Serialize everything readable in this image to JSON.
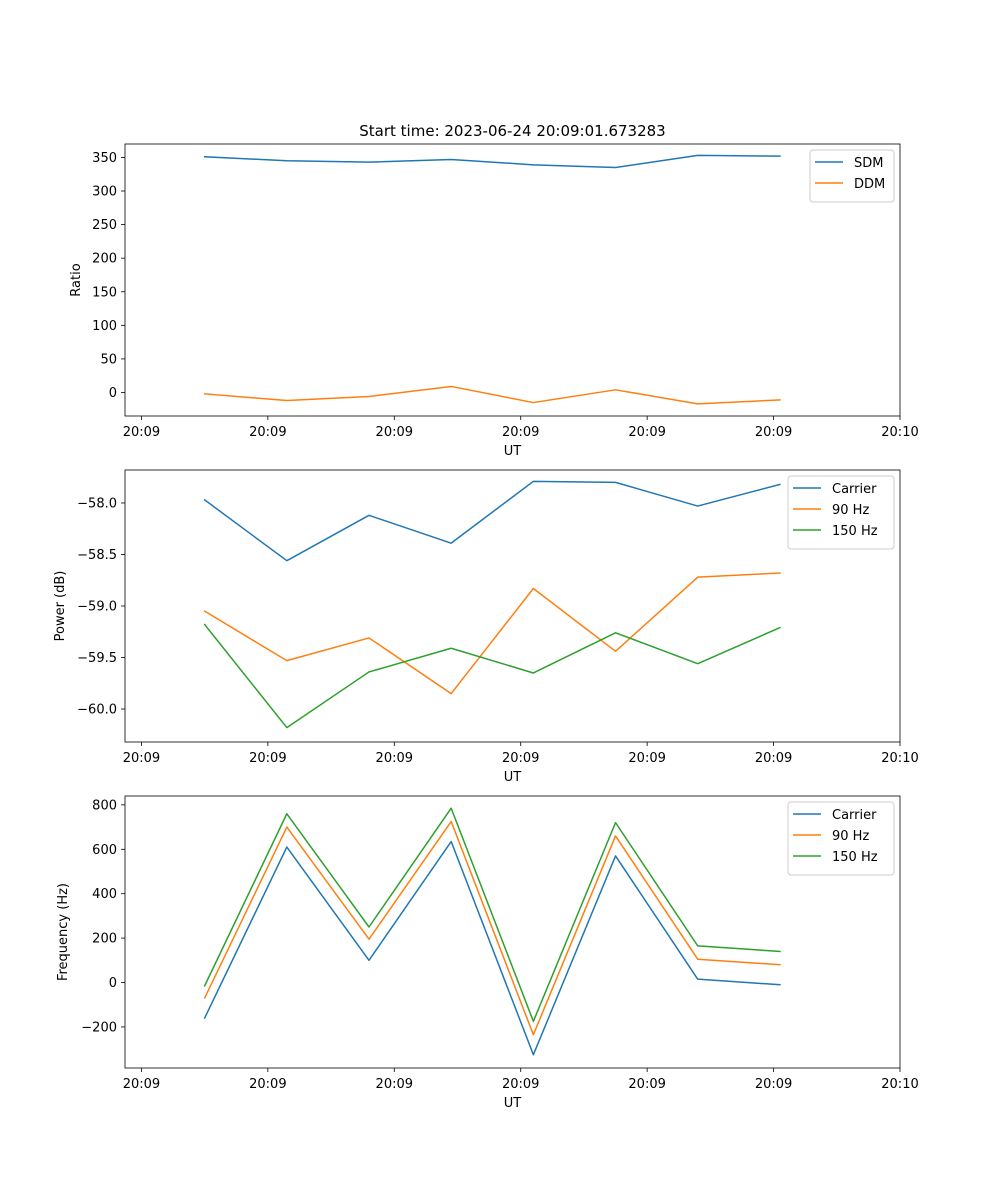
{
  "figure": {
    "title": "Start time: 2023-06-24 20:09:01.673283"
  },
  "chart_data": [
    {
      "type": "line",
      "title": "Start time: 2023-06-24 20:09:01.673283",
      "xlabel": "UT",
      "ylabel": "Ratio",
      "x_ticks": [
        "20:09",
        "20:09",
        "20:09",
        "20:09",
        "20:09",
        "20:09",
        "20:10"
      ],
      "x": [
        0.5,
        1.15,
        1.8,
        2.45,
        3.1,
        3.75,
        4.4,
        5.05
      ],
      "xlim": [
        -0.13,
        6.0
      ],
      "ylim": [
        -35,
        370
      ],
      "y_ticks": [
        0,
        50,
        100,
        150,
        200,
        250,
        300,
        350
      ],
      "legend": "top-right",
      "grid": false,
      "series": [
        {
          "name": "SDM",
          "color": "#1f77b4",
          "values": [
            351,
            345,
            343,
            347,
            339,
            335,
            353,
            352
          ]
        },
        {
          "name": "DDM",
          "color": "#ff7f0e",
          "values": [
            -2,
            -12,
            -6,
            9,
            -15,
            4,
            -17,
            -11
          ]
        }
      ]
    },
    {
      "type": "line",
      "xlabel": "UT",
      "ylabel": "Power (dB)",
      "x_ticks": [
        "20:09",
        "20:09",
        "20:09",
        "20:09",
        "20:09",
        "20:09",
        "20:10"
      ],
      "x": [
        0.5,
        1.15,
        1.8,
        2.45,
        3.1,
        3.75,
        4.4,
        5.05
      ],
      "xlim": [
        -0.13,
        6.0
      ],
      "ylim": [
        -60.32,
        -57.68
      ],
      "y_ticks": [
        -58.0,
        -58.5,
        -59.0,
        -59.5,
        -60.0
      ],
      "y_tick_labels": [
        "−58.0",
        "−58.5",
        "−59.0",
        "−59.5",
        "−60.0"
      ],
      "legend": "top-right",
      "grid": false,
      "series": [
        {
          "name": "Carrier",
          "color": "#1f77b4",
          "values": [
            -57.97,
            -58.56,
            -58.12,
            -58.39,
            -57.79,
            -57.8,
            -58.03,
            -57.82
          ]
        },
        {
          "name": "90 Hz",
          "color": "#ff7f0e",
          "values": [
            -59.05,
            -59.53,
            -59.31,
            -59.85,
            -58.83,
            -59.44,
            -58.72,
            -58.68
          ]
        },
        {
          "name": "150 Hz",
          "color": "#2ca02c",
          "values": [
            -59.18,
            -60.18,
            -59.64,
            -59.41,
            -59.65,
            -59.26,
            -59.56,
            -59.21
          ]
        }
      ]
    },
    {
      "type": "line",
      "xlabel": "UT",
      "ylabel": "Frequency (Hz)",
      "x_ticks": [
        "20:09",
        "20:09",
        "20:09",
        "20:09",
        "20:09",
        "20:09",
        "20:10"
      ],
      "x": [
        0.5,
        1.15,
        1.8,
        2.45,
        3.1,
        3.75,
        4.4,
        5.05
      ],
      "xlim": [
        -0.13,
        6.0
      ],
      "ylim": [
        -385,
        840
      ],
      "y_ticks": [
        -200,
        0,
        200,
        400,
        600,
        800
      ],
      "y_tick_labels": [
        "−200",
        "0",
        "200",
        "400",
        "600",
        "800"
      ],
      "legend": "top-right",
      "grid": false,
      "series": [
        {
          "name": "Carrier",
          "color": "#1f77b4",
          "values": [
            -160,
            610,
            100,
            635,
            -325,
            570,
            15,
            -10
          ]
        },
        {
          "name": "90 Hz",
          "color": "#ff7f0e",
          "values": [
            -70,
            700,
            195,
            725,
            -235,
            660,
            105,
            80
          ]
        },
        {
          "name": "150 Hz",
          "color": "#2ca02c",
          "values": [
            -15,
            760,
            250,
            785,
            -175,
            720,
            165,
            140
          ]
        }
      ]
    }
  ]
}
